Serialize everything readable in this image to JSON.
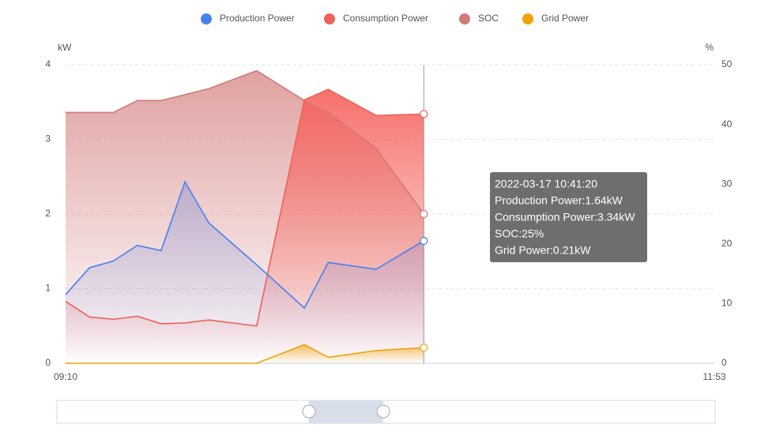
{
  "chart_data": {
    "type": "line",
    "x": [
      "09:10",
      "09:16",
      "09:22",
      "09:28",
      "09:34",
      "09:40",
      "09:46",
      "09:58",
      "10:10",
      "10:16",
      "10:28",
      "10:40"
    ],
    "xlim": [
      "09:10",
      "11:53"
    ],
    "xticks": [
      "09:10",
      "11:53"
    ],
    "ylabel": "kW",
    "y2label": "%",
    "ylim": [
      0,
      4
    ],
    "yticks": [
      0,
      1,
      2,
      3,
      4
    ],
    "y2lim": [
      0,
      50
    ],
    "y2ticks": [
      0,
      10,
      20,
      30,
      40,
      50
    ],
    "grid": true,
    "legend": "top",
    "series": [
      {
        "name": "Production Power",
        "color": "#4580f0",
        "values": [
          0.92,
          1.28,
          1.37,
          1.58,
          1.51,
          2.43,
          1.88,
          1.32,
          0.74,
          1.35,
          1.26,
          1.64
        ]
      },
      {
        "name": "Consumption Power",
        "color": "#f0605a",
        "values": [
          0.83,
          0.62,
          0.59,
          0.63,
          0.53,
          0.54,
          0.58,
          0.5,
          3.53,
          3.67,
          3.32,
          3.34
        ]
      },
      {
        "name": "SOC",
        "color": "#d17a78",
        "axis": "y2",
        "values": [
          42,
          42,
          42,
          44,
          44,
          45,
          46,
          49,
          44,
          42,
          36,
          25
        ]
      },
      {
        "name": "Grid Power",
        "color": "#f0a30a",
        "values": [
          0,
          0,
          0,
          0,
          0,
          0,
          0,
          0,
          0.25,
          0.08,
          0.17,
          0.21
        ]
      }
    ],
    "tooltip": {
      "title": "2022-03-17 10:41:20",
      "lines": [
        "Production Power:1.64kW",
        "Consumption Power:3.34kW",
        "SOC:25%",
        "Grid Power:0.21kW"
      ]
    }
  }
}
